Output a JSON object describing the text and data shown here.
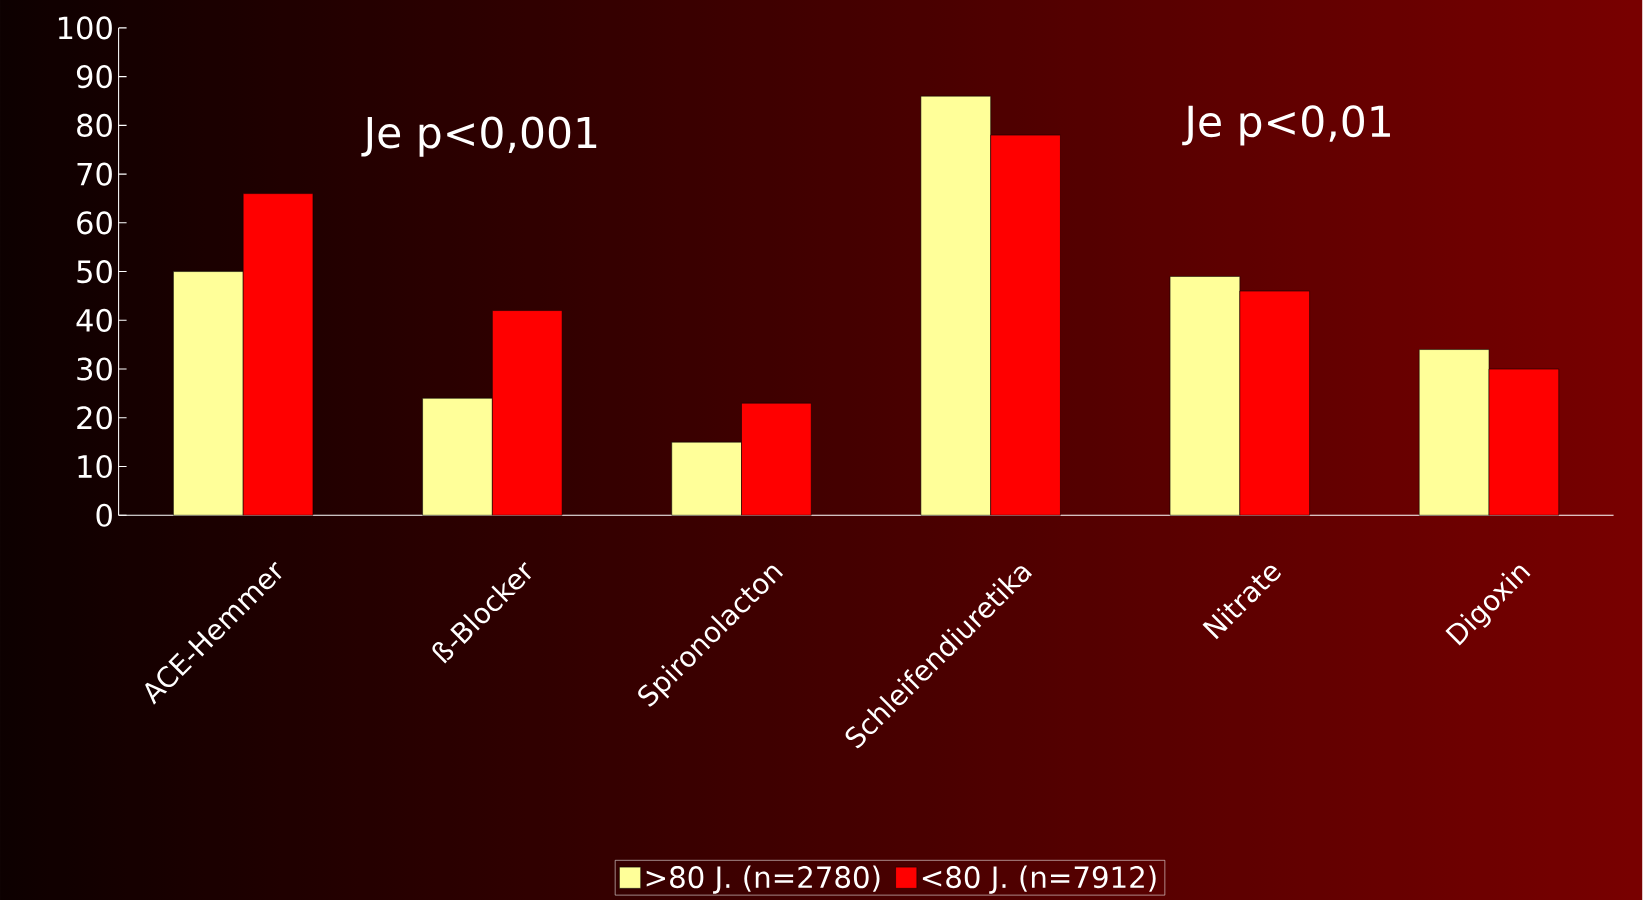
{
  "chart_data": {
    "type": "bar",
    "categories": [
      "ACE-Hemmer",
      "ß-Blocker",
      "Spironolacton",
      "Schleifendiuretika",
      "Nitrate",
      "Digoxin"
    ],
    "series": [
      {
        "name": ">80 J. (n=2780)",
        "color": "#ffff99",
        "values": [
          50,
          24,
          15,
          86,
          49,
          34
        ]
      },
      {
        "name": "<80 J. (n=7912)",
        "color": "#ff0000",
        "values": [
          66,
          42,
          23,
          78,
          46,
          30
        ]
      }
    ],
    "ylim": [
      0,
      100
    ],
    "yticks": [
      0,
      10,
      20,
      30,
      40,
      50,
      60,
      70,
      80,
      90,
      100
    ],
    "grid": false,
    "legend": "bottom",
    "annotations": [
      "Je p<0,001",
      "Je p<0,01"
    ]
  }
}
